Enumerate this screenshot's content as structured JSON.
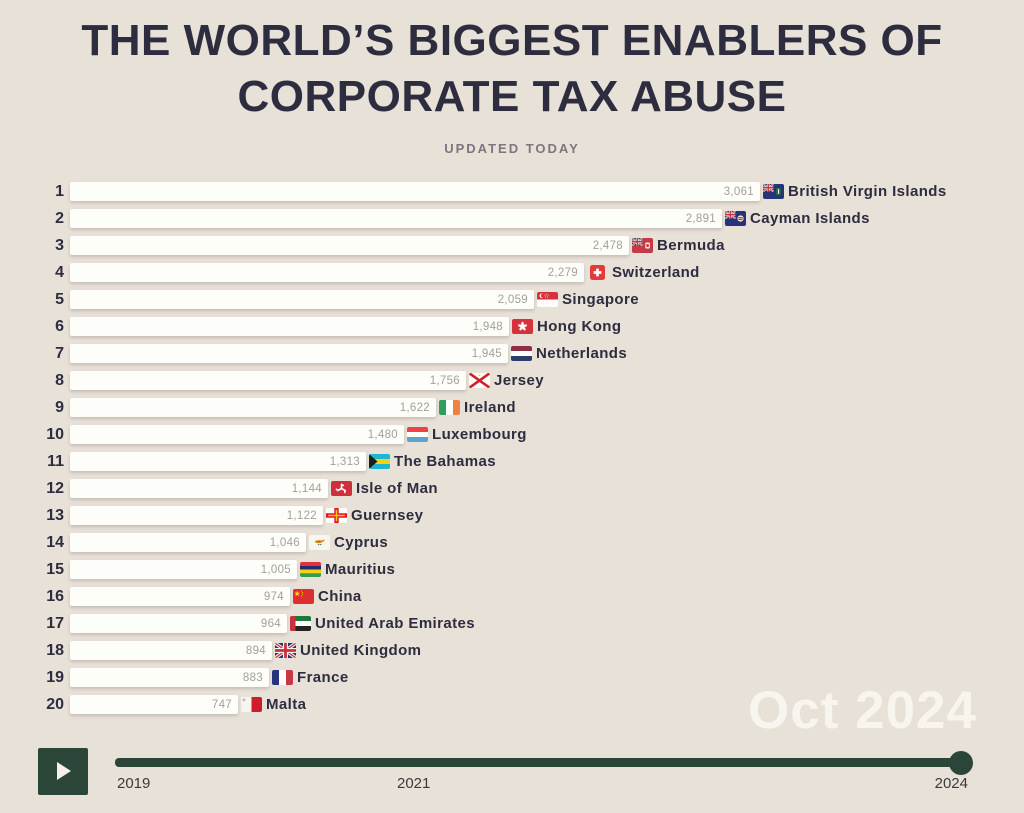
{
  "header": {
    "title_line1": "THE WORLD’S BIGGEST ENABLERS OF",
    "title_line2": "CORPORATE TAX ABUSE",
    "subtitle": "UPDATED TODAY"
  },
  "date_label": "Oct 2024",
  "chart_data": {
    "type": "bar",
    "orientation": "horizontal",
    "title": "The World's Biggest Enablers of Corporate Tax Abuse",
    "subtitle": "Updated today",
    "date_shown": "Oct 2024",
    "xlim": [
      0,
      3061
    ],
    "rows": [
      {
        "rank": 1,
        "country": "British Virgin Islands",
        "value": 3061,
        "label": "3,061",
        "flag": "british-virgin-islands"
      },
      {
        "rank": 2,
        "country": "Cayman Islands",
        "value": 2891,
        "label": "2,891",
        "flag": "cayman-islands"
      },
      {
        "rank": 3,
        "country": "Bermuda",
        "value": 2478,
        "label": "2,478",
        "flag": "bermuda"
      },
      {
        "rank": 4,
        "country": "Switzerland",
        "value": 2279,
        "label": "2,279",
        "flag": "switzerland"
      },
      {
        "rank": 5,
        "country": "Singapore",
        "value": 2059,
        "label": "2,059",
        "flag": "singapore"
      },
      {
        "rank": 6,
        "country": "Hong Kong",
        "value": 1948,
        "label": "1,948",
        "flag": "hong-kong"
      },
      {
        "rank": 7,
        "country": "Netherlands",
        "value": 1945,
        "label": "1,945",
        "flag": "netherlands"
      },
      {
        "rank": 8,
        "country": "Jersey",
        "value": 1756,
        "label": "1,756",
        "flag": "jersey"
      },
      {
        "rank": 9,
        "country": "Ireland",
        "value": 1622,
        "label": "1,622",
        "flag": "ireland"
      },
      {
        "rank": 10,
        "country": "Luxembourg",
        "value": 1480,
        "label": "1,480",
        "flag": "luxembourg"
      },
      {
        "rank": 11,
        "country": "The Bahamas",
        "value": 1313,
        "label": "1,313",
        "flag": "bahamas"
      },
      {
        "rank": 12,
        "country": "Isle of Man",
        "value": 1144,
        "label": "1,144",
        "flag": "isle-of-man"
      },
      {
        "rank": 13,
        "country": "Guernsey",
        "value": 1122,
        "label": "1,122",
        "flag": "guernsey"
      },
      {
        "rank": 14,
        "country": "Cyprus",
        "value": 1046,
        "label": "1,046",
        "flag": "cyprus"
      },
      {
        "rank": 15,
        "country": "Mauritius",
        "value": 1005,
        "label": "1,005",
        "flag": "mauritius"
      },
      {
        "rank": 16,
        "country": "China",
        "value": 974,
        "label": "974",
        "flag": "china"
      },
      {
        "rank": 17,
        "country": "United Arab Emirates",
        "value": 964,
        "label": "964",
        "flag": "united-arab-emirates"
      },
      {
        "rank": 18,
        "country": "United Kingdom",
        "value": 894,
        "label": "894",
        "flag": "united-kingdom"
      },
      {
        "rank": 19,
        "country": "France",
        "value": 883,
        "label": "883",
        "flag": "france"
      },
      {
        "rank": 20,
        "country": "Malta",
        "value": 747,
        "label": "747",
        "flag": "malta"
      }
    ]
  },
  "timeline": {
    "play_icon": "play-icon",
    "ticks": [
      "2019",
      "2021",
      "2024"
    ],
    "range_start": 2019,
    "range_end": 2024,
    "current_position": 2024
  },
  "colors": {
    "background": "#e8e1d8",
    "title": "#2e2c3f",
    "subtitle": "#7b7680",
    "bar": "#fdfdfa",
    "value_label": "#a5a098",
    "accent_green": "#2b4639",
    "date_watermark": "#f8f4ee"
  }
}
